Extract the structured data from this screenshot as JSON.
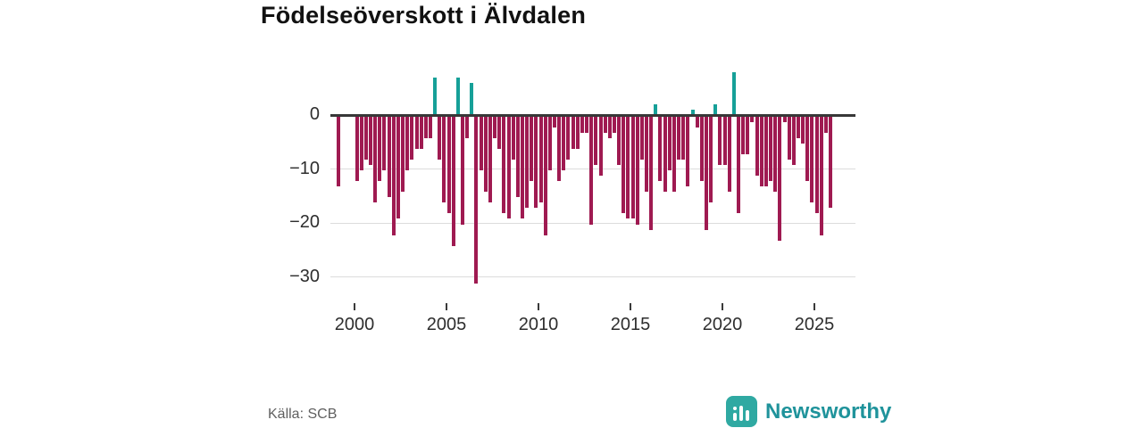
{
  "title": "Födelseöverskott i Älvdalen",
  "source": "Källa: SCB",
  "brand": {
    "name": "Newsworthy",
    "icon_color": "#2fa9a2",
    "text_color": "#1f939b"
  },
  "chart_data": {
    "type": "bar",
    "title": "Födelseöverskott i Älvdalen",
    "xlabel": "",
    "ylabel": "",
    "grid": true,
    "legend": false,
    "ylim": [
      -33,
      9
    ],
    "y_tick_values": [
      0,
      -10,
      -20,
      -30
    ],
    "y_tick_labels": [
      "0",
      "−10",
      "−20",
      "−30"
    ],
    "x_tick_years": [
      2000,
      2005,
      2010,
      2015,
      2020,
      2025
    ],
    "x_tick_labels": [
      "2000",
      "2005",
      "2010",
      "2015",
      "2020",
      "2025"
    ],
    "colors": {
      "negative": "#9f1a51",
      "positive": "#16a098"
    },
    "series": [
      {
        "name": "Födelseöverskott (kvartal)",
        "quarters": [
          "1999K1",
          "1999K2",
          "1999K3",
          "1999K4",
          "2000K1",
          "2000K2",
          "2000K3",
          "2000K4",
          "2001K1",
          "2001K2",
          "2001K3",
          "2001K4",
          "2002K1",
          "2002K2",
          "2002K3",
          "2002K4",
          "2003K1",
          "2003K2",
          "2003K3",
          "2003K4",
          "2004K1",
          "2004K2",
          "2004K3",
          "2004K4",
          "2005K1",
          "2005K2",
          "2005K3",
          "2005K4",
          "2006K1",
          "2006K2",
          "2006K3",
          "2006K4",
          "2007K1",
          "2007K2",
          "2007K3",
          "2007K4",
          "2008K1",
          "2008K2",
          "2008K3",
          "2008K4",
          "2009K1",
          "2009K2",
          "2009K3",
          "2009K4",
          "2010K1",
          "2010K2",
          "2010K3",
          "2010K4",
          "2011K1",
          "2011K2",
          "2011K3",
          "2011K4",
          "2012K1",
          "2012K2",
          "2012K3",
          "2012K4",
          "2013K1",
          "2013K2",
          "2013K3",
          "2013K4",
          "2014K1",
          "2014K2",
          "2014K3",
          "2014K4",
          "2015K1",
          "2015K2",
          "2015K3",
          "2015K4",
          "2016K1",
          "2016K2",
          "2016K3",
          "2016K4",
          "2017K1",
          "2017K2",
          "2017K3",
          "2017K4",
          "2018K1",
          "2018K2",
          "2018K3",
          "2018K4",
          "2019K1",
          "2019K2",
          "2019K3",
          "2019K4",
          "2020K1",
          "2020K2",
          "2020K3",
          "2020K4",
          "2021K1",
          "2021K2",
          "2021K3",
          "2021K4",
          "2022K1",
          "2022K2",
          "2022K3",
          "2022K4",
          "2023K1",
          "2023K2",
          "2023K3",
          "2023K4",
          "2024K1",
          "2024K2",
          "2024K3",
          "2024K4",
          "2025K1",
          "2025K2",
          "2025K3",
          "2025K4"
        ],
        "values": [
          -13,
          0,
          0,
          0,
          -12,
          -10,
          -8,
          -9,
          -16,
          -12,
          -10,
          -15,
          -22,
          -19,
          -14,
          -10,
          -8,
          -6,
          -6,
          -4,
          -4,
          7,
          -8,
          -16,
          -18,
          -24,
          7,
          -20,
          -4,
          6,
          -31,
          -10,
          -14,
          -16,
          -4,
          -6,
          -18,
          -19,
          -8,
          -15,
          -19,
          -17,
          -12,
          -17,
          -16,
          -22,
          -10,
          -2,
          -12,
          -10,
          -8,
          -6,
          -6,
          -3,
          -3,
          -20,
          -9,
          -11,
          -3,
          -4,
          -3,
          -9,
          -18,
          -19,
          -19,
          -20,
          -8,
          -14,
          -21,
          2,
          -12,
          -14,
          -10,
          -14,
          -8,
          -8,
          -13,
          1,
          -2,
          -12,
          -21,
          -16,
          2,
          -9,
          -9,
          -14,
          8,
          -18,
          -7,
          -7,
          -1,
          -11,
          -13,
          -13,
          -12,
          -14,
          -23,
          -1,
          -8,
          -9,
          -4,
          -5,
          -12,
          -16,
          -18,
          -22,
          -3,
          -17
        ]
      }
    ]
  }
}
